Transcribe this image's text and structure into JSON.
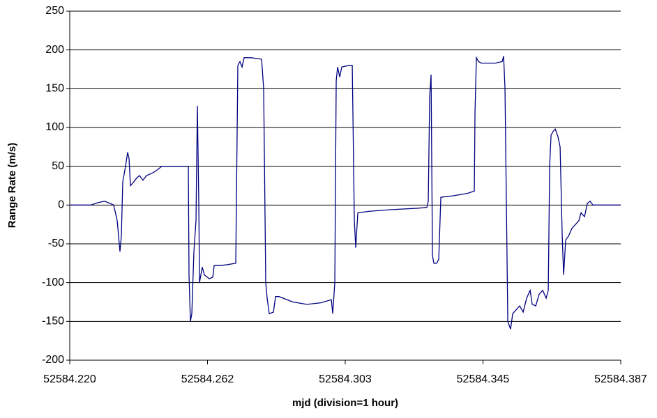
{
  "chart_data": {
    "type": "line",
    "x_label": "mjd (division=1 hour)",
    "y_label": "Range Rate (m/s)",
    "xlim": [
      52584.22,
      52584.38667
    ],
    "xticks": [
      {
        "value": 52584.22,
        "label": "52584.220"
      },
      {
        "value": 52584.26167,
        "label": "52584.262"
      },
      {
        "value": 52584.30333,
        "label": "52584.303"
      },
      {
        "value": 52584.345,
        "label": "52584.345"
      },
      {
        "value": 52584.38667,
        "label": "52584.387"
      }
    ],
    "ylim": [
      -200,
      250
    ],
    "yticks": [
      -200,
      -150,
      -100,
      -50,
      0,
      50,
      100,
      150,
      200,
      250
    ],
    "grid": true,
    "series": [
      {
        "color": "#000080",
        "x": [
          52584.22,
          52584.22633,
          52584.22844,
          52584.23055,
          52584.23224,
          52584.23329,
          52584.23435,
          52584.23519,
          52584.23561,
          52584.23604,
          52584.23688,
          52584.23751,
          52584.23794,
          52584.23836,
          52584.23941,
          52584.24026,
          52584.2411,
          52584.24216,
          52584.24321,
          52584.24427,
          52584.24532,
          52584.24638,
          52584.24785,
          52584.25165,
          52584.25587,
          52584.25608,
          52584.2565,
          52584.25693,
          52584.25756,
          52584.25819,
          52584.25861,
          52584.25904,
          52584.25925,
          52584.26009,
          52584.26072,
          52584.2622,
          52584.26326,
          52584.26368,
          52584.26537,
          52584.26748,
          52584.27022,
          52584.27085,
          52584.27148,
          52584.27212,
          52584.27275,
          52584.27486,
          52584.27803,
          52584.27866,
          52584.27929,
          52584.27971,
          52584.28035,
          52584.28161,
          52584.28225,
          52584.2833,
          52584.28752,
          52584.29174,
          52584.29596,
          52584.29913,
          52584.29955,
          52584.30018,
          52584.3006,
          52584.30102,
          52584.30166,
          52584.30229,
          52584.3044,
          52584.30546,
          52584.30609,
          52584.30651,
          52584.30714,
          52584.31073,
          52584.31706,
          52584.3255,
          52584.32803,
          52584.32845,
          52584.32888,
          52584.3293,
          52584.32972,
          52584.33014,
          52584.33099,
          52584.33162,
          52584.33225,
          52584.33605,
          52584.34027,
          52584.34238,
          52584.34259,
          52584.34301,
          52584.34365,
          52584.34449,
          52584.34871,
          52584.35082,
          52584.35124,
          52584.35166,
          52584.35251,
          52584.35335,
          52584.35399,
          52584.35504,
          52584.3561,
          52584.35715,
          52584.35821,
          52584.35926,
          52584.35989,
          52584.36095,
          52584.362,
          52584.36306,
          52584.36411,
          52584.36475,
          52584.36517,
          52584.36559,
          52584.36622,
          52584.36686,
          52584.3677,
          52584.36833,
          52584.36897,
          52584.36939,
          52584.37002,
          52584.37087,
          52584.37192,
          52584.37298,
          52584.37403,
          52584.37466,
          52584.37572,
          52584.37656,
          52584.37741,
          52584.37825,
          52584.38247,
          52584.38667
        ],
        "values": [
          0,
          0,
          3,
          5,
          2,
          0,
          -20,
          -60,
          -40,
          30,
          50,
          68,
          60,
          25,
          30,
          35,
          38,
          32,
          38,
          40,
          42,
          45,
          50,
          50,
          50,
          -90,
          -150,
          -140,
          -60,
          -20,
          128,
          0,
          -100,
          -80,
          -90,
          -95,
          -93,
          -78,
          -78,
          -77,
          -75,
          180,
          185,
          178,
          190,
          190,
          188,
          150,
          -100,
          -120,
          -140,
          -138,
          -118,
          -118,
          -125,
          -128,
          -126,
          -122,
          -140,
          -100,
          160,
          178,
          165,
          178,
          180,
          180,
          -20,
          -55,
          -10,
          -8,
          -6,
          -4,
          -3,
          5,
          140,
          168,
          -65,
          -75,
          -75,
          -70,
          10,
          12,
          15,
          18,
          120,
          190,
          185,
          183,
          183,
          185,
          192,
          150,
          -150,
          -160,
          -140,
          -135,
          -130,
          -138,
          -120,
          -110,
          -128,
          -130,
          -115,
          -110,
          -120,
          -110,
          50,
          90,
          95,
          98,
          88,
          75,
          -40,
          -90,
          -45,
          -40,
          -30,
          -25,
          -20,
          -10,
          -15,
          2,
          5,
          0,
          0,
          0
        ]
      }
    ]
  }
}
